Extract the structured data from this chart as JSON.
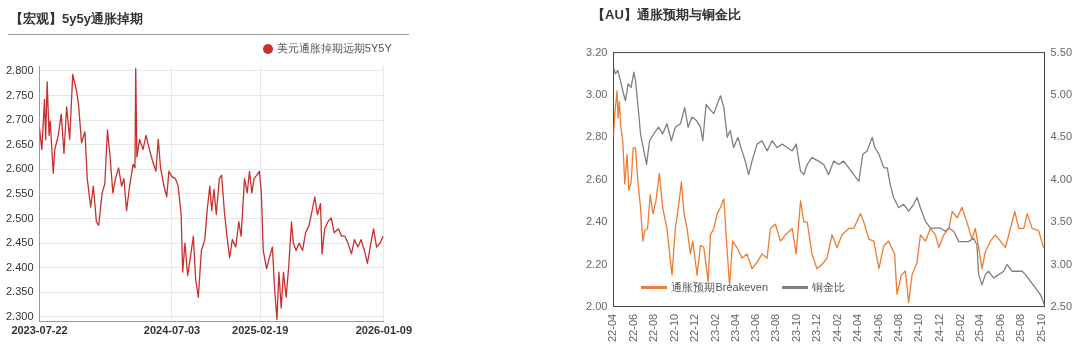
{
  "chart_data": [
    {
      "type": "line",
      "title": "【宏观】5y5y通胀掉期",
      "legend": "top right",
      "grid": true,
      "xlim": [
        "2023-07-22",
        "2026-01-09"
      ],
      "xticks": [
        "2023-07-22",
        "2024-07-03",
        "2025-02-19",
        "2026-01-09"
      ],
      "ylim": [
        2.29,
        2.81
      ],
      "yticks": [
        {
          "value": 2.3,
          "label": "2.300"
        },
        {
          "value": 2.35,
          "label": "2.350"
        },
        {
          "value": 2.4,
          "label": "2.400"
        },
        {
          "value": 2.45,
          "label": "2.450"
        },
        {
          "value": 2.5,
          "label": "2.500"
        },
        {
          "value": 2.55,
          "label": "2.550"
        },
        {
          "value": 2.6,
          "label": "2.600"
        },
        {
          "value": 2.65,
          "label": "2.650"
        },
        {
          "value": 2.7,
          "label": "2.700"
        },
        {
          "value": 2.75,
          "label": "2.750"
        },
        {
          "value": 2.8,
          "label": "2.800"
        }
      ],
      "series": [
        {
          "name": "美元通胀掉期远期5Y5Y",
          "color": "#c8302e",
          "x": [
            "2023-07-22",
            "2023-07-28",
            "2023-08-04",
            "2023-08-07",
            "2023-08-11",
            "2023-08-16",
            "2023-08-19",
            "2023-08-27",
            "2023-08-31",
            "2023-09-09",
            "2023-09-17",
            "2023-09-24",
            "2023-10-01",
            "2023-10-09",
            "2023-10-17",
            "2023-10-26",
            "2023-11-01",
            "2023-11-09",
            "2023-11-18",
            "2023-11-24",
            "2023-12-03",
            "2023-12-10",
            "2023-12-18",
            "2023-12-24",
            "2024-01-02",
            "2024-01-09",
            "2024-01-16",
            "2024-01-23",
            "2024-01-30",
            "2024-02-06",
            "2024-02-14",
            "2024-02-22",
            "2024-02-28",
            "2024-03-06",
            "2024-03-14",
            "2024-03-23",
            "2024-03-28",
            "2024-03-30",
            "2024-04-02",
            "2024-04-09",
            "2024-04-18",
            "2024-04-26",
            "2024-05-05",
            "2024-05-13",
            "2024-05-22",
            "2024-05-28",
            "2024-06-03",
            "2024-06-12",
            "2024-06-19",
            "2024-06-25",
            "2024-07-03",
            "2024-07-12",
            "2024-07-19",
            "2024-07-27",
            "2024-07-31",
            "2024-08-06",
            "2024-08-13",
            "2024-08-20",
            "2024-08-28",
            "2024-09-03",
            "2024-09-10",
            "2024-09-18",
            "2024-09-27",
            "2024-10-03",
            "2024-10-10",
            "2024-10-15",
            "2024-10-21",
            "2024-10-27",
            "2024-11-04",
            "2024-11-10",
            "2024-11-17",
            "2024-11-24",
            "2024-12-01",
            "2024-12-08",
            "2024-12-17",
            "2024-12-25",
            "2024-12-31",
            "2025-01-09",
            "2025-01-16",
            "2025-01-22",
            "2025-01-28",
            "2025-02-03",
            "2025-02-10",
            "2025-02-17",
            "2025-02-22",
            "2025-02-27",
            "2025-03-08",
            "2025-03-15",
            "2025-03-23",
            "2025-03-29",
            "2025-04-04",
            "2025-04-09",
            "2025-04-15",
            "2025-04-21",
            "2025-04-28",
            "2025-05-05",
            "2025-05-12",
            "2025-05-17",
            "2025-05-24",
            "2025-06-01",
            "2025-06-10",
            "2025-06-18",
            "2025-06-27",
            "2025-07-05",
            "2025-07-12",
            "2025-07-19",
            "2025-07-27",
            "2025-07-31",
            "2025-08-07",
            "2025-08-15",
            "2025-08-24",
            "2025-09-01",
            "2025-09-12",
            "2025-09-20",
            "2025-09-29",
            "2025-10-07",
            "2025-10-16",
            "2025-10-24",
            "2025-11-02",
            "2025-11-10",
            "2025-11-19",
            "2025-11-27",
            "2025-12-06",
            "2025-12-13",
            "2025-12-21",
            "2025-12-30",
            "2026-01-07",
            "2026-01-09"
          ],
          "values": [
            2.683,
            2.64,
            2.742,
            2.66,
            2.778,
            2.669,
            2.698,
            2.592,
            2.64,
            2.669,
            2.712,
            2.632,
            2.727,
            2.661,
            2.793,
            2.763,
            2.734,
            2.654,
            2.676,
            2.581,
            2.523,
            2.566,
            2.493,
            2.486,
            2.552,
            2.57,
            2.68,
            2.625,
            2.552,
            2.581,
            2.603,
            2.566,
            2.581,
            2.516,
            2.566,
            2.61,
            2.603,
            2.805,
            2.625,
            2.661,
            2.64,
            2.669,
            2.64,
            2.617,
            2.596,
            2.661,
            2.603,
            2.566,
            2.544,
            2.596,
            2.585,
            2.581,
            2.566,
            2.508,
            2.391,
            2.45,
            2.384,
            2.42,
            2.464,
            2.376,
            2.34,
            2.435,
            2.457,
            2.516,
            2.566,
            2.516,
            2.559,
            2.508,
            2.581,
            2.588,
            2.516,
            2.464,
            2.42,
            2.457,
            2.442,
            2.493,
            2.464,
            2.581,
            2.552,
            2.596,
            2.552,
            2.581,
            2.588,
            2.596,
            2.552,
            2.435,
            2.398,
            2.42,
            2.442,
            2.354,
            2.295,
            2.391,
            2.318,
            2.391,
            2.34,
            2.405,
            2.493,
            2.45,
            2.435,
            2.45,
            2.435,
            2.471,
            2.486,
            2.516,
            2.544,
            2.508,
            2.53,
            2.428,
            2.479,
            2.493,
            2.501,
            2.471,
            2.479,
            2.464,
            2.464,
            2.45,
            2.428,
            2.457,
            2.442,
            2.457,
            2.435,
            2.409,
            2.45,
            2.479,
            2.442,
            2.45,
            2.464,
            2.464
          ]
        }
      ]
    },
    {
      "type": "line",
      "title": "【AU】通胀预期与铜金比",
      "legend": "bottom left",
      "grid": false,
      "xlim": [
        "2022-04-01",
        "2025-10-10"
      ],
      "xticks": [
        {
          "value": "2022-04",
          "label": "22-04"
        },
        {
          "value": "2022-06",
          "label": "22-06"
        },
        {
          "value": "2022-08",
          "label": "22-08"
        },
        {
          "value": "2022-10",
          "label": "22-10"
        },
        {
          "value": "2022-12",
          "label": "22-12"
        },
        {
          "value": "2023-02",
          "label": "23-02"
        },
        {
          "value": "2023-04",
          "label": "23-04"
        },
        {
          "value": "2023-06",
          "label": "23-06"
        },
        {
          "value": "2023-08",
          "label": "23-08"
        },
        {
          "value": "2023-10",
          "label": "23-10"
        },
        {
          "value": "2023-12",
          "label": "23-12"
        },
        {
          "value": "2024-02",
          "label": "24-02"
        },
        {
          "value": "2024-04",
          "label": "24-04"
        },
        {
          "value": "2024-06",
          "label": "24-06"
        },
        {
          "value": "2024-08",
          "label": "24-08"
        },
        {
          "value": "2024-10",
          "label": "24-10"
        },
        {
          "value": "2024-12",
          "label": "24-12"
        },
        {
          "value": "2025-02",
          "label": "25-02"
        },
        {
          "value": "2025-04",
          "label": "25-04"
        },
        {
          "value": "2025-06",
          "label": "25-06"
        },
        {
          "value": "2025-08",
          "label": "25-08"
        },
        {
          "value": "2025-10",
          "label": "25-10"
        }
      ],
      "ylim": [
        2.0,
        3.2
      ],
      "yticks": [
        {
          "value": 2.0,
          "label": "2.00"
        },
        {
          "value": 2.2,
          "label": "2.20"
        },
        {
          "value": 2.4,
          "label": "2.40"
        },
        {
          "value": 2.6,
          "label": "2.60"
        },
        {
          "value": 2.8,
          "label": "2.80"
        },
        {
          "value": 3.0,
          "label": "3.00"
        },
        {
          "value": 3.2,
          "label": "3.20"
        }
      ],
      "y2lim": [
        2.5,
        5.5
      ],
      "y2ticks": [
        {
          "value": 2.5,
          "label": "2.50"
        },
        {
          "value": 3.0,
          "label": "3.00"
        },
        {
          "value": 3.5,
          "label": "3.50"
        },
        {
          "value": 4.0,
          "label": "4.00"
        },
        {
          "value": 4.5,
          "label": "4.50"
        },
        {
          "value": 5.0,
          "label": "5.00"
        },
        {
          "value": 5.5,
          "label": "5.50"
        }
      ],
      "series": [
        {
          "name": "通胀预期Breakeven",
          "color": "#ed7d31",
          "x": [
            "2022-04-01",
            "2022-04-05",
            "2022-04-12",
            "2022-04-15",
            "2022-04-19",
            "2022-04-23",
            "2022-04-29",
            "2022-05-05",
            "2022-05-12",
            "2022-05-17",
            "2022-05-24",
            "2022-05-30",
            "2022-06-06",
            "2022-06-13",
            "2022-06-21",
            "2022-06-28",
            "2022-07-04",
            "2022-07-12",
            "2022-07-20",
            "2022-07-28",
            "2022-08-06",
            "2022-08-16",
            "2022-08-26",
            "2022-09-08",
            "2022-09-23",
            "2022-10-03",
            "2022-10-13",
            "2022-10-21",
            "2022-10-29",
            "2022-11-07",
            "2022-11-17",
            "2022-11-24",
            "2022-12-07",
            "2022-12-17",
            "2022-12-27",
            "2023-01-09",
            "2023-01-16",
            "2023-01-26",
            "2023-02-05",
            "2023-02-15",
            "2023-02-25",
            "2023-03-05",
            "2023-03-14",
            "2023-03-23",
            "2023-04-05",
            "2023-04-20",
            "2023-05-05",
            "2023-05-20",
            "2023-06-04",
            "2023-06-19",
            "2023-07-04",
            "2023-07-14",
            "2023-07-29",
            "2023-08-13",
            "2023-08-28",
            "2023-09-17",
            "2023-09-29",
            "2023-10-12",
            "2023-10-22",
            "2023-11-01",
            "2023-11-15",
            "2023-11-30",
            "2023-12-15",
            "2023-12-30",
            "2024-01-14",
            "2024-01-29",
            "2024-02-13",
            "2024-03-04",
            "2024-03-19",
            "2024-04-08",
            "2024-04-18",
            "2024-05-03",
            "2024-05-18",
            "2024-06-02",
            "2024-06-17",
            "2024-07-01",
            "2024-07-19",
            "2024-07-26",
            "2024-08-08",
            "2024-08-20",
            "2024-08-30",
            "2024-09-09",
            "2024-09-24",
            "2024-10-04",
            "2024-10-19",
            "2024-11-03",
            "2024-11-18",
            "2024-11-28",
            "2024-12-13",
            "2024-12-28",
            "2025-01-07",
            "2025-01-22",
            "2025-02-05",
            "2025-02-20",
            "2025-03-07",
            "2025-03-17",
            "2025-03-27",
            "2025-04-06",
            "2025-04-16",
            "2025-05-01",
            "2025-05-16",
            "2025-05-31",
            "2025-06-15",
            "2025-06-30",
            "2025-07-13",
            "2025-07-25",
            "2025-08-09",
            "2025-08-19",
            "2025-09-03",
            "2025-09-22",
            "2025-10-07"
          ],
          "values": [
            2.8,
            2.91,
            3.02,
            2.89,
            2.97,
            2.85,
            2.78,
            2.58,
            2.72,
            2.55,
            2.59,
            2.75,
            2.75,
            2.59,
            2.47,
            2.31,
            2.36,
            2.37,
            2.53,
            2.44,
            2.5,
            2.63,
            2.47,
            2.37,
            2.15,
            2.37,
            2.48,
            2.59,
            2.44,
            2.37,
            2.25,
            2.31,
            2.15,
            2.29,
            2.28,
            2.12,
            2.34,
            2.37,
            2.44,
            2.47,
            2.51,
            2.31,
            2.1,
            2.31,
            2.28,
            2.23,
            2.25,
            2.18,
            2.21,
            2.25,
            2.23,
            2.37,
            2.39,
            2.31,
            2.34,
            2.37,
            2.25,
            2.5,
            2.4,
            2.4,
            2.25,
            2.18,
            2.2,
            2.23,
            2.34,
            2.28,
            2.34,
            2.37,
            2.37,
            2.44,
            2.4,
            2.32,
            2.31,
            2.18,
            2.29,
            2.31,
            2.25,
            2.06,
            2.15,
            2.17,
            2.02,
            2.15,
            2.21,
            2.34,
            2.31,
            2.37,
            2.34,
            2.28,
            2.34,
            2.37,
            2.45,
            2.42,
            2.47,
            2.4,
            2.32,
            2.37,
            2.28,
            2.18,
            2.26,
            2.31,
            2.34,
            2.31,
            2.28,
            2.37,
            2.45,
            2.37,
            2.37,
            2.44,
            2.37,
            2.36,
            2.28
          ]
        },
        {
          "name": "铜金比",
          "color": "#7f7f7f",
          "axis": "y2",
          "x": [
            "2022-04-01",
            "2022-04-07",
            "2022-04-14",
            "2022-04-22",
            "2022-04-29",
            "2022-05-07",
            "2022-05-15",
            "2022-05-24",
            "2022-06-01",
            "2022-06-06",
            "2022-06-14",
            "2022-06-21",
            "2022-07-01",
            "2022-07-09",
            "2022-07-18",
            "2022-07-30",
            "2022-08-14",
            "2022-08-26",
            "2022-09-08",
            "2022-09-21",
            "2022-10-03",
            "2022-10-18",
            "2022-10-31",
            "2022-11-10",
            "2022-11-22",
            "2022-12-05",
            "2022-12-17",
            "2022-12-24",
            "2023-01-03",
            "2023-01-16",
            "2023-01-26",
            "2023-02-05",
            "2023-02-15",
            "2023-02-25",
            "2023-03-07",
            "2023-03-16",
            "2023-03-26",
            "2023-04-08",
            "2023-04-20",
            "2023-04-30",
            "2023-05-10",
            "2023-05-20",
            "2023-06-04",
            "2023-06-19",
            "2023-07-04",
            "2023-07-19",
            "2023-08-03",
            "2023-08-18",
            "2023-09-02",
            "2023-09-17",
            "2023-09-29",
            "2023-10-12",
            "2023-10-22",
            "2023-11-01",
            "2023-11-15",
            "2023-12-05",
            "2023-12-20",
            "2024-01-04",
            "2024-01-19",
            "2024-02-03",
            "2024-02-18",
            "2024-03-04",
            "2024-03-19",
            "2024-04-03",
            "2024-04-15",
            "2024-04-28",
            "2024-05-13",
            "2024-05-21",
            "2024-06-02",
            "2024-06-17",
            "2024-06-27",
            "2024-07-06",
            "2024-07-16",
            "2024-07-31",
            "2024-08-15",
            "2024-08-30",
            "2024-09-14",
            "2024-09-24",
            "2024-10-04",
            "2024-10-19",
            "2024-11-03",
            "2024-11-18",
            "2024-12-03",
            "2024-12-18",
            "2024-12-28",
            "2025-01-12",
            "2025-01-27",
            "2025-02-10",
            "2025-02-25",
            "2025-03-12",
            "2025-03-22",
            "2025-03-27",
            "2025-04-06",
            "2025-04-16",
            "2025-04-26",
            "2025-05-11",
            "2025-05-26",
            "2025-06-10",
            "2025-06-20",
            "2025-07-05",
            "2025-07-20",
            "2025-08-04",
            "2025-08-14",
            "2025-08-29",
            "2025-09-13",
            "2025-09-28",
            "2025-10-10"
          ],
          "values": [
            5.33,
            5.25,
            5.29,
            5.17,
            5.05,
            4.93,
            5.13,
            5.09,
            5.27,
            5.17,
            4.85,
            4.54,
            4.34,
            4.18,
            4.46,
            4.54,
            4.62,
            4.54,
            4.66,
            4.46,
            4.62,
            4.66,
            4.85,
            4.62,
            4.74,
            4.7,
            4.62,
            4.46,
            4.89,
            4.82,
            4.78,
            4.89,
            4.99,
            4.85,
            4.5,
            4.58,
            4.38,
            4.5,
            4.34,
            4.22,
            4.06,
            4.22,
            4.42,
            4.46,
            4.34,
            4.46,
            4.38,
            4.42,
            4.38,
            4.34,
            4.42,
            4.1,
            4.06,
            4.18,
            4.26,
            4.22,
            4.18,
            4.06,
            4.22,
            4.18,
            4.22,
            4.14,
            4.06,
            3.98,
            4.3,
            4.34,
            4.5,
            4.38,
            4.3,
            4.14,
            4.14,
            3.94,
            3.79,
            3.67,
            3.71,
            3.63,
            3.71,
            3.79,
            3.67,
            3.51,
            3.43,
            3.43,
            3.43,
            3.39,
            3.43,
            3.39,
            3.27,
            3.27,
            3.27,
            3.31,
            3.23,
            2.88,
            2.76,
            2.88,
            2.92,
            2.84,
            2.88,
            2.92,
            3.0,
            2.92,
            2.92,
            2.92,
            2.88,
            2.8,
            2.72,
            2.64,
            2.52
          ]
        }
      ]
    }
  ]
}
